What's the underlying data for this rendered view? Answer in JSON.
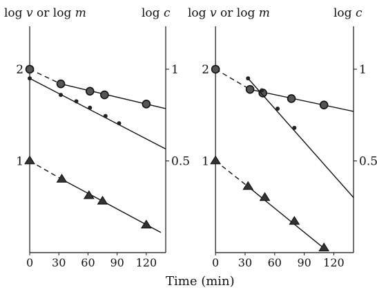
{
  "figure": {
    "xlabel": "Time (min)"
  },
  "chart_data": [
    {
      "type": "scatter",
      "panel": "left",
      "left_axis_label": {
        "prefix1": "log",
        "var1": "v",
        "mid": "or",
        "prefix2": "log",
        "var2": "m"
      },
      "right_axis_label": {
        "prefix": "log",
        "var": "c"
      },
      "x_ticks": [
        "0",
        "30",
        "60",
        "90",
        "120"
      ],
      "x_tick_values": [
        0,
        30,
        60,
        90,
        120
      ],
      "left_ticks": [
        "2",
        "1"
      ],
      "left_tick_values": [
        2,
        1
      ],
      "right_ticks": [
        "1",
        "0.5"
      ],
      "right_tick_values": [
        1,
        0.5
      ],
      "xlim": [
        -5,
        140
      ],
      "ylim_left": [
        0,
        2.2
      ],
      "series": [
        {
          "marker": "ringed-circle",
          "points": [
            [
              0,
              2.0
            ],
            [
              32,
              1.84
            ],
            [
              62,
              1.76
            ],
            [
              77,
              1.72
            ],
            [
              120,
              1.62
            ]
          ],
          "fit": [
            [
              32,
              1.84
            ],
            [
              140,
              1.57
            ]
          ],
          "dashed": [
            [
              0,
              2.0
            ],
            [
              32,
              1.84
            ]
          ]
        },
        {
          "marker": "small-dot",
          "points": [
            [
              0,
              1.9
            ],
            [
              32,
              1.72
            ],
            [
              48,
              1.65
            ],
            [
              62,
              1.58
            ],
            [
              78,
              1.49
            ],
            [
              92,
              1.41
            ]
          ],
          "fit": [
            [
              0,
              1.9
            ],
            [
              140,
              1.13
            ]
          ]
        },
        {
          "marker": "triangle",
          "points": [
            [
              0,
              1.0
            ],
            [
              33,
              0.8
            ],
            [
              61,
              0.62
            ],
            [
              75,
              0.56
            ],
            [
              120,
              0.3
            ]
          ],
          "fit": [
            [
              33,
              0.8
            ],
            [
              135,
              0.22
            ]
          ],
          "dashed": [
            [
              0,
              1.0
            ],
            [
              33,
              0.8
            ]
          ]
        }
      ]
    },
    {
      "type": "scatter",
      "panel": "right",
      "left_axis_label": {
        "prefix1": "log",
        "var1": "v",
        "mid": "or",
        "prefix2": "log",
        "var2": "m"
      },
      "right_axis_label": {
        "prefix": "log",
        "var": "c"
      },
      "x_ticks": [
        "0",
        "30",
        "60",
        "90",
        "120"
      ],
      "x_tick_values": [
        0,
        30,
        60,
        90,
        120
      ],
      "left_ticks": [
        "2",
        "1"
      ],
      "left_tick_values": [
        2,
        1
      ],
      "right_ticks": [
        "1",
        "0.5"
      ],
      "right_tick_values": [
        1,
        0.5
      ],
      "xlim": [
        -5,
        140
      ],
      "ylim_left": [
        0,
        2.2
      ],
      "series": [
        {
          "marker": "ringed-circle",
          "points": [
            [
              0,
              2.0
            ],
            [
              35,
              1.78
            ],
            [
              48,
              1.74
            ],
            [
              77,
              1.68
            ],
            [
              110,
              1.61
            ]
          ],
          "fit": [
            [
              35,
              1.78
            ],
            [
              140,
              1.54
            ]
          ],
          "dashed": [
            [
              0,
              2.0
            ],
            [
              35,
              1.78
            ]
          ]
        },
        {
          "marker": "small-dot",
          "points": [
            [
              33,
              1.9
            ],
            [
              47,
              1.77
            ],
            [
              63,
              1.57
            ],
            [
              80,
              1.36
            ]
          ],
          "fit": [
            [
              33,
              1.9
            ],
            [
              140,
              0.6
            ]
          ]
        },
        {
          "marker": "triangle",
          "points": [
            [
              0,
              1.0
            ],
            [
              33,
              0.72
            ],
            [
              50,
              0.6
            ],
            [
              80,
              0.34
            ],
            [
              110,
              0.05
            ]
          ],
          "fit": [
            [
              33,
              0.72
            ],
            [
              112,
              0.03
            ]
          ],
          "dashed": [
            [
              0,
              1.0
            ],
            [
              33,
              0.72
            ]
          ]
        }
      ]
    }
  ]
}
